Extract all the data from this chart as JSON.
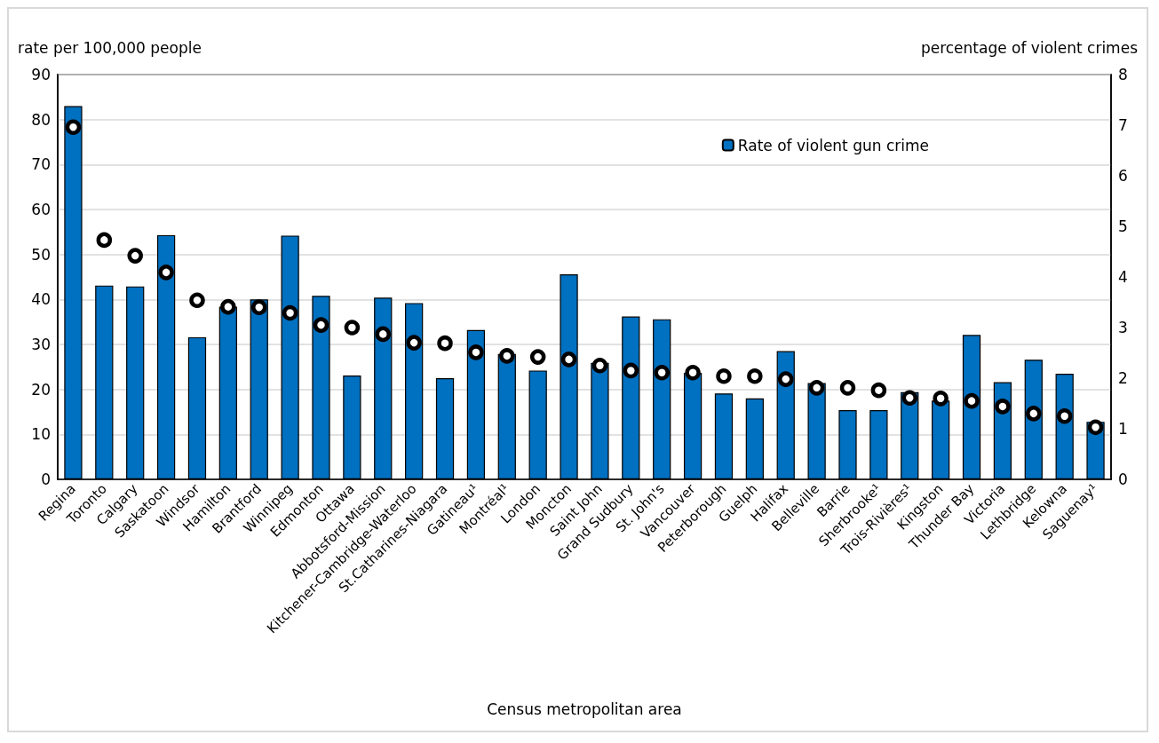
{
  "chart_data": {
    "type": "bar",
    "ylabel": "rate per 100,000 people",
    "y2label": "percentage of violent crimes",
    "xlabel": "Census metropolitan area",
    "categories": [
      "Regina",
      "Toronto",
      "Calgary",
      "Saskatoon",
      "Windsor",
      "Hamilton",
      "Brantford",
      "Winnipeg",
      "Edmonton",
      "Ottawa",
      "Abbotsford-Mission",
      "Kitchener-Cambridge-Waterloo",
      "St.Catharines-Niagara",
      "Gatineau¹",
      "Montréal¹",
      "London",
      "Moncton",
      "Saint John",
      "Grand Sudbury",
      "St. John's",
      "Vancouver",
      "Peterborough",
      "Guelph",
      "Halifax",
      "Belleville",
      "Barrie",
      "Sherbrooke¹",
      "Trois-Rivières¹",
      "Kingston",
      "Thunder Bay",
      "Victoria",
      "Lethbridge",
      "Kelowna",
      "Saguenay¹"
    ],
    "series": [
      {
        "name": "Rate of violent gun crime",
        "color": "#0070c0",
        "values": [
          83.0,
          43.1,
          42.9,
          54.3,
          31.6,
          38.4,
          40.0,
          54.2,
          40.8,
          23.1,
          40.4,
          39.2,
          22.5,
          33.2,
          27.9,
          24.2,
          45.6,
          25.9,
          36.2,
          35.6,
          23.7,
          19.1,
          18.0,
          28.5,
          21.4,
          15.4,
          15.4,
          19.4,
          17.5,
          32.1,
          21.6,
          26.6,
          23.5,
          12.8
        ]
      },
      {
        "type": "scatter",
        "axis": "y2",
        "color": "#000000",
        "marker": "circle",
        "values": [
          6.96,
          4.73,
          4.42,
          4.09,
          3.54,
          3.41,
          3.4,
          3.29,
          3.05,
          3.0,
          2.87,
          2.7,
          2.69,
          2.51,
          2.44,
          2.42,
          2.37,
          2.25,
          2.15,
          2.11,
          2.11,
          2.04,
          2.04,
          1.98,
          1.81,
          1.81,
          1.76,
          1.61,
          1.6,
          1.55,
          1.44,
          1.3,
          1.25,
          1.03
        ]
      }
    ],
    "ylim": [
      0,
      90
    ],
    "yticks": [
      0,
      10,
      20,
      30,
      40,
      50,
      60,
      70,
      80,
      90
    ],
    "y2lim": [
      0,
      8
    ],
    "y2ticks": [
      0,
      1,
      2,
      3,
      4,
      5,
      6,
      7,
      8
    ],
    "grid": "y",
    "legend": "top right"
  }
}
